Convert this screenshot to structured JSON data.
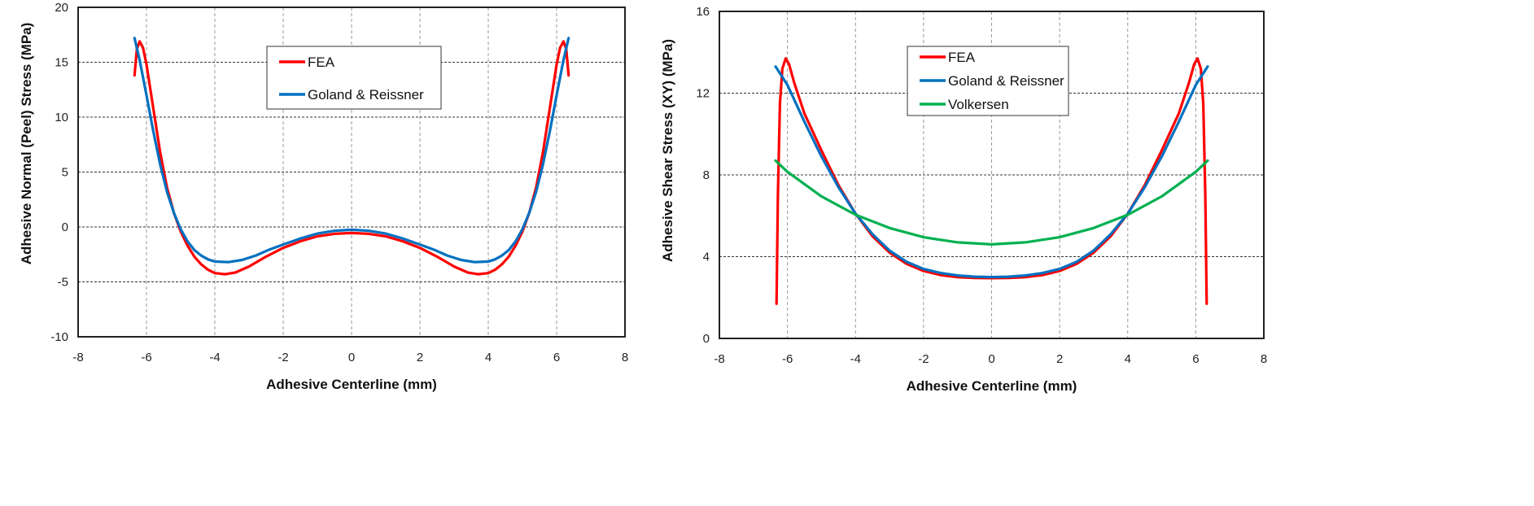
{
  "chart_data": [
    {
      "type": "line",
      "xlabel": "Adhesive Centerline   (mm)",
      "ylabel": "Adhesive Normal (Peel) Stress  (MPa)",
      "xlim": [
        -8,
        8
      ],
      "ylim": [
        -10,
        20
      ],
      "xticks": [
        -8,
        -6,
        -4,
        -2,
        0,
        2,
        4,
        6,
        8
      ],
      "yticks": [
        -10,
        -5,
        0,
        5,
        10,
        15,
        20
      ],
      "grid": true,
      "legend": "top-center",
      "series": [
        {
          "name": "FEA",
          "color": "#ff0000",
          "points": [
            [
              -6.35,
              13.8
            ],
            [
              -6.28,
              16.2
            ],
            [
              -6.2,
              16.9
            ],
            [
              -6.1,
              16.3
            ],
            [
              -6.0,
              14.8
            ],
            [
              -5.8,
              10.8
            ],
            [
              -5.6,
              6.8
            ],
            [
              -5.4,
              3.6
            ],
            [
              -5.2,
              1.3
            ],
            [
              -5.0,
              -0.4
            ],
            [
              -4.8,
              -1.7
            ],
            [
              -4.6,
              -2.7
            ],
            [
              -4.4,
              -3.4
            ],
            [
              -4.2,
              -3.9
            ],
            [
              -4.0,
              -4.2
            ],
            [
              -3.7,
              -4.3
            ],
            [
              -3.4,
              -4.15
            ],
            [
              -3.0,
              -3.6
            ],
            [
              -2.5,
              -2.7
            ],
            [
              -2.0,
              -1.9
            ],
            [
              -1.5,
              -1.3
            ],
            [
              -1.0,
              -0.85
            ],
            [
              -0.5,
              -0.62
            ],
            [
              0,
              -0.55
            ],
            [
              0.5,
              -0.62
            ],
            [
              1.0,
              -0.85
            ],
            [
              1.5,
              -1.3
            ],
            [
              2.0,
              -1.9
            ],
            [
              2.5,
              -2.7
            ],
            [
              3.0,
              -3.6
            ],
            [
              3.4,
              -4.15
            ],
            [
              3.7,
              -4.3
            ],
            [
              4.0,
              -4.2
            ],
            [
              4.2,
              -3.9
            ],
            [
              4.4,
              -3.4
            ],
            [
              4.6,
              -2.7
            ],
            [
              4.8,
              -1.7
            ],
            [
              5.0,
              -0.4
            ],
            [
              5.2,
              1.3
            ],
            [
              5.4,
              3.6
            ],
            [
              5.6,
              6.8
            ],
            [
              5.8,
              10.8
            ],
            [
              6.0,
              14.8
            ],
            [
              6.1,
              16.3
            ],
            [
              6.2,
              16.9
            ],
            [
              6.28,
              16.2
            ],
            [
              6.35,
              13.8
            ]
          ]
        },
        {
          "name": "Goland & Reissner",
          "color": "#0070c0",
          "points": [
            [
              -6.35,
              17.2
            ],
            [
              -6.2,
              15.2
            ],
            [
              -6.0,
              12.0
            ],
            [
              -5.8,
              8.7
            ],
            [
              -5.6,
              5.7
            ],
            [
              -5.4,
              3.2
            ],
            [
              -5.2,
              1.3
            ],
            [
              -5.0,
              -0.2
            ],
            [
              -4.8,
              -1.3
            ],
            [
              -4.6,
              -2.1
            ],
            [
              -4.4,
              -2.6
            ],
            [
              -4.2,
              -2.95
            ],
            [
              -4.0,
              -3.15
            ],
            [
              -3.6,
              -3.2
            ],
            [
              -3.2,
              -3.0
            ],
            [
              -2.8,
              -2.6
            ],
            [
              -2.4,
              -2.05
            ],
            [
              -2.0,
              -1.6
            ],
            [
              -1.5,
              -1.05
            ],
            [
              -1.0,
              -0.6
            ],
            [
              -0.5,
              -0.35
            ],
            [
              0,
              -0.25
            ],
            [
              0.5,
              -0.35
            ],
            [
              1.0,
              -0.6
            ],
            [
              1.5,
              -1.05
            ],
            [
              2.0,
              -1.6
            ],
            [
              2.4,
              -2.05
            ],
            [
              2.8,
              -2.6
            ],
            [
              3.2,
              -3.0
            ],
            [
              3.6,
              -3.2
            ],
            [
              4.0,
              -3.15
            ],
            [
              4.2,
              -2.95
            ],
            [
              4.4,
              -2.6
            ],
            [
              4.6,
              -2.1
            ],
            [
              4.8,
              -1.3
            ],
            [
              5.0,
              -0.2
            ],
            [
              5.2,
              1.3
            ],
            [
              5.4,
              3.2
            ],
            [
              5.6,
              5.7
            ],
            [
              5.8,
              8.7
            ],
            [
              6.0,
              12.0
            ],
            [
              6.2,
              15.2
            ],
            [
              6.35,
              17.2
            ]
          ]
        }
      ]
    },
    {
      "type": "line",
      "xlabel": "Adhesive Centerline   (mm)",
      "ylabel": "Adhesive Shear Stress (XY)  (MPa)",
      "xlim": [
        -8,
        8
      ],
      "ylim": [
        0,
        16
      ],
      "xticks": [
        -8,
        -6,
        -4,
        -2,
        0,
        2,
        4,
        6,
        8
      ],
      "yticks": [
        0,
        4,
        8,
        12,
        16
      ],
      "grid": true,
      "legend": "top-center",
      "series": [
        {
          "name": "FEA",
          "color": "#ff0000",
          "points": [
            [
              -6.32,
              1.7
            ],
            [
              -6.28,
              7.0
            ],
            [
              -6.22,
              11.5
            ],
            [
              -6.15,
              13.2
            ],
            [
              -6.05,
              13.7
            ],
            [
              -5.95,
              13.4
            ],
            [
              -5.8,
              12.5
            ],
            [
              -5.5,
              11.0
            ],
            [
              -5.0,
              9.2
            ],
            [
              -4.5,
              7.5
            ],
            [
              -4.0,
              6.1
            ],
            [
              -3.5,
              5.0
            ],
            [
              -3.0,
              4.2
            ],
            [
              -2.5,
              3.65
            ],
            [
              -2.0,
              3.3
            ],
            [
              -1.5,
              3.1
            ],
            [
              -1.0,
              3.0
            ],
            [
              -0.5,
              2.96
            ],
            [
              0,
              2.95
            ],
            [
              0.5,
              2.96
            ],
            [
              1.0,
              3.0
            ],
            [
              1.5,
              3.1
            ],
            [
              2.0,
              3.3
            ],
            [
              2.5,
              3.65
            ],
            [
              3.0,
              4.2
            ],
            [
              3.5,
              5.0
            ],
            [
              4.0,
              6.1
            ],
            [
              4.5,
              7.5
            ],
            [
              5.0,
              9.2
            ],
            [
              5.5,
              11.0
            ],
            [
              5.8,
              12.5
            ],
            [
              5.95,
              13.4
            ],
            [
              6.05,
              13.7
            ],
            [
              6.15,
              13.2
            ],
            [
              6.22,
              11.5
            ],
            [
              6.28,
              7.0
            ],
            [
              6.32,
              1.7
            ]
          ]
        },
        {
          "name": "Goland & Reissner",
          "color": "#0070c0",
          "points": [
            [
              -6.35,
              13.3
            ],
            [
              -6.0,
              12.4
            ],
            [
              -5.5,
              10.6
            ],
            [
              -5.0,
              8.9
            ],
            [
              -4.5,
              7.4
            ],
            [
              -4.0,
              6.1
            ],
            [
              -3.5,
              5.1
            ],
            [
              -3.0,
              4.3
            ],
            [
              -2.5,
              3.75
            ],
            [
              -2.0,
              3.4
            ],
            [
              -1.5,
              3.2
            ],
            [
              -1.0,
              3.08
            ],
            [
              -0.5,
              3.02
            ],
            [
              0,
              3.0
            ],
            [
              0.5,
              3.02
            ],
            [
              1.0,
              3.08
            ],
            [
              1.5,
              3.2
            ],
            [
              2.0,
              3.4
            ],
            [
              2.5,
              3.75
            ],
            [
              3.0,
              4.3
            ],
            [
              3.5,
              5.1
            ],
            [
              4.0,
              6.1
            ],
            [
              4.5,
              7.4
            ],
            [
              5.0,
              8.9
            ],
            [
              5.5,
              10.6
            ],
            [
              6.0,
              12.4
            ],
            [
              6.35,
              13.3
            ]
          ]
        },
        {
          "name": "Volkersen",
          "color": "#00b050",
          "points": [
            [
              -6.35,
              8.7
            ],
            [
              -6.0,
              8.15
            ],
            [
              -5.0,
              6.95
            ],
            [
              -4.0,
              6.05
            ],
            [
              -3.0,
              5.4
            ],
            [
              -2.0,
              4.95
            ],
            [
              -1.0,
              4.7
            ],
            [
              0,
              4.6
            ],
            [
              1.0,
              4.7
            ],
            [
              2.0,
              4.95
            ],
            [
              3.0,
              5.4
            ],
            [
              4.0,
              6.05
            ],
            [
              5.0,
              6.95
            ],
            [
              6.0,
              8.15
            ],
            [
              6.35,
              8.7
            ]
          ]
        }
      ]
    }
  ]
}
